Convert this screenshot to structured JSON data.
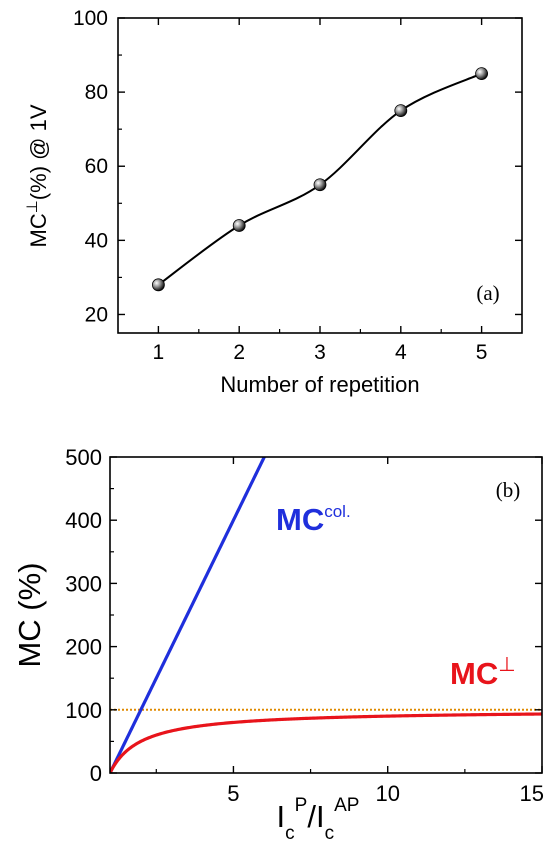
{
  "chart_data": [
    {
      "type": "line",
      "panel_label": "(a)",
      "xlabel": "Number of repetition",
      "ylabel": {
        "main": "MC",
        "sup": "⊥",
        "rest": "(%) @ 1V"
      },
      "xlim": [
        0.5,
        5.5
      ],
      "ylim": [
        15,
        100
      ],
      "xticks": [
        1,
        2,
        3,
        4,
        5
      ],
      "yticks": [
        20,
        40,
        60,
        80,
        100
      ],
      "x": [
        1,
        2,
        3,
        4,
        5
      ],
      "y": [
        28,
        44,
        55,
        75,
        85
      ],
      "line_color": "#000000",
      "marker": "sphere"
    },
    {
      "type": "line",
      "panel_label": "(b)",
      "xlabel": {
        "i1": "I",
        "s1": "c",
        "p1": "P",
        "slash": "/",
        "i2": "I",
        "s2": "c",
        "p2": "AP"
      },
      "ylabel": "MC  (%)",
      "xlim": [
        1,
        15
      ],
      "ylim": [
        0,
        500
      ],
      "xticks": [
        5,
        10,
        15
      ],
      "yticks": [
        0,
        100,
        200,
        300,
        400,
        500
      ],
      "series": [
        {
          "label_main": "MC",
          "label_sup": "col.",
          "formula": "100*(r-1)",
          "color": "#1f2fdc"
        },
        {
          "label_main": "MC",
          "label_sup": "⊥",
          "formula": "100*(r-1)/r",
          "color": "#e8141b"
        }
      ],
      "reference_line": {
        "y": 100,
        "color": "#e08a00",
        "style": "dotted"
      }
    }
  ]
}
